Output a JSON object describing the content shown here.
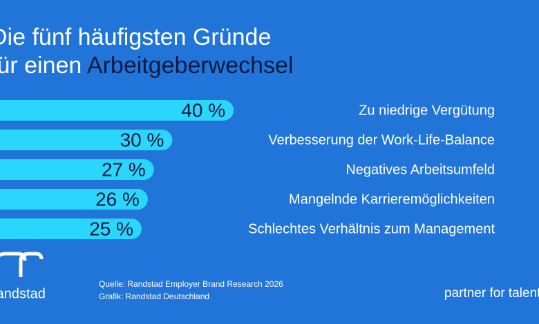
{
  "chart_data": {
    "type": "bar",
    "orientation": "horizontal",
    "title": [
      "Die fünf häufigsten Gründe",
      "für einen",
      "Arbeitgeberwechsel"
    ],
    "categories": [
      "Zu niedrige Vergütung",
      "Verbesserung der Work-Life-Balance",
      "Negatives Arbeitsumfeld",
      "Mangelnde Karrieremöglichkeiten",
      "Schlechtes Verhältnis zum Management"
    ],
    "values": [
      40,
      30,
      27,
      26,
      25
    ],
    "value_labels": [
      "40 %",
      "30 %",
      "27 %",
      "26 %",
      "25 %"
    ],
    "color": "#2ad6fc",
    "source": "Quelle: Randstad Employer Brand Research 2026",
    "credit": "Grafik: Randstad Deutschland",
    "brand": "randstad",
    "slogan": "partner for talent"
  }
}
